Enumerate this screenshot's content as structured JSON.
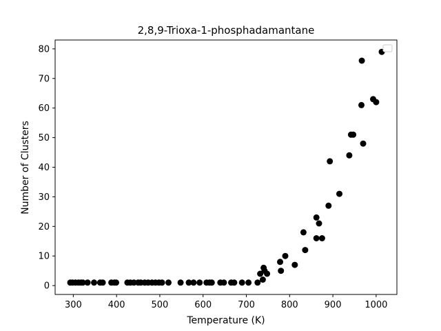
{
  "chart_data": {
    "type": "scatter",
    "title": "2,8,9-Trioxa-1-phosphadamantane",
    "xlabel": "Temperature (K)",
    "ylabel": "Number of Clusters",
    "xlim": [
      258,
      1048
    ],
    "ylim": [
      -3,
      83
    ],
    "xticks": [
      300,
      400,
      500,
      600,
      700,
      800,
      900,
      1000
    ],
    "yticks": [
      0,
      10,
      20,
      30,
      40,
      50,
      60,
      70,
      80
    ],
    "grid": false,
    "legend": {
      "placement": "upper right",
      "entries": []
    },
    "marker_color": "#000000",
    "points": [
      [
        293,
        1
      ],
      [
        298,
        1
      ],
      [
        305,
        1
      ],
      [
        312,
        1
      ],
      [
        318,
        1
      ],
      [
        322,
        1
      ],
      [
        333,
        1
      ],
      [
        348,
        1
      ],
      [
        362,
        1
      ],
      [
        368,
        1
      ],
      [
        388,
        1
      ],
      [
        395,
        1
      ],
      [
        399,
        1
      ],
      [
        425,
        1
      ],
      [
        432,
        1
      ],
      [
        440,
        1
      ],
      [
        450,
        1
      ],
      [
        456,
        1
      ],
      [
        465,
        1
      ],
      [
        473,
        1
      ],
      [
        482,
        1
      ],
      [
        490,
        1
      ],
      [
        498,
        1
      ],
      [
        505,
        1
      ],
      [
        520,
        1
      ],
      [
        548,
        1
      ],
      [
        567,
        1
      ],
      [
        578,
        1
      ],
      [
        592,
        1
      ],
      [
        608,
        1
      ],
      [
        615,
        1
      ],
      [
        620,
        1
      ],
      [
        640,
        1
      ],
      [
        648,
        1
      ],
      [
        665,
        1
      ],
      [
        672,
        1
      ],
      [
        690,
        1
      ],
      [
        705,
        1
      ],
      [
        726,
        1
      ],
      [
        732,
        4
      ],
      [
        738,
        2
      ],
      [
        740,
        6
      ],
      [
        742,
        5
      ],
      [
        748,
        4
      ],
      [
        778,
        8
      ],
      [
        780,
        5
      ],
      [
        790,
        10
      ],
      [
        812,
        7
      ],
      [
        832,
        18
      ],
      [
        836,
        12
      ],
      [
        862,
        23
      ],
      [
        862,
        16
      ],
      [
        868,
        21
      ],
      [
        875,
        16
      ],
      [
        890,
        27
      ],
      [
        893,
        42
      ],
      [
        915,
        31
      ],
      [
        938,
        44
      ],
      [
        942,
        51
      ],
      [
        947,
        51
      ],
      [
        966,
        61
      ],
      [
        967,
        76
      ],
      [
        970,
        48
      ],
      [
        993,
        63
      ],
      [
        1000,
        62
      ],
      [
        1013,
        79
      ]
    ]
  }
}
